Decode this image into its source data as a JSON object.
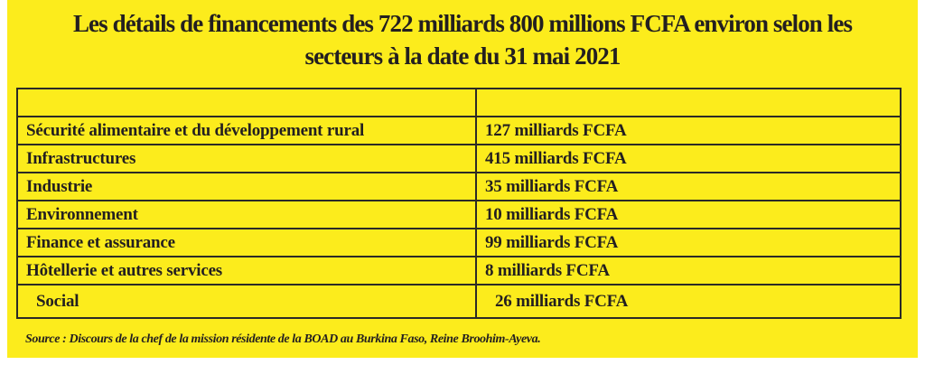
{
  "title": {
    "line1": "Les détails de financements des 722 milliards 800 millions FCFA environ selon les",
    "line2": "secteurs à la date du 31 mai 2021"
  },
  "table": {
    "header": [
      "",
      ""
    ],
    "rows": [
      {
        "sector": "Sécurité alimentaire et du développement rural",
        "amount": "127 milliards FCFA"
      },
      {
        "sector": "Infrastructures",
        "amount": "415 milliards FCFA"
      },
      {
        "sector": "Industrie",
        "amount": "35 milliards FCFA"
      },
      {
        "sector": "Environnement",
        "amount": "10 milliards FCFA"
      },
      {
        "sector": "Finance et assurance",
        "amount": "99 milliards FCFA"
      },
      {
        "sector": "Hôtellerie et autres services",
        "amount": "8 milliards FCFA"
      },
      {
        "sector": "Social",
        "amount": "26 milliards FCFA"
      }
    ]
  },
  "source": "Source : Discours de la chef de la mission résidente de la BOAD au Burkina Faso, Reine Broohim-Ayeva.",
  "colors": {
    "background": "#fcec1c",
    "text": "#231f20",
    "border": "#2b2a26"
  }
}
